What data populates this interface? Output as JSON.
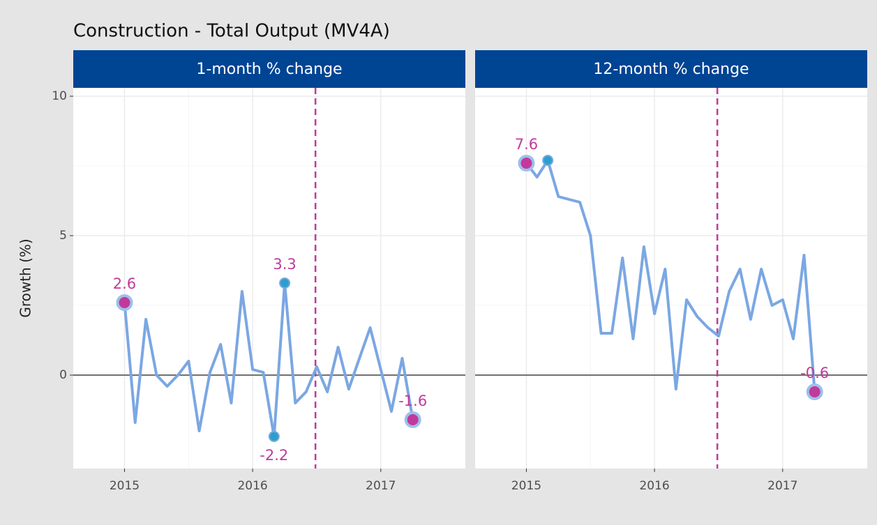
{
  "title": "Construction - Total Output (MV4A)",
  "y_label": "Growth (%)",
  "chart_data": [
    {
      "type": "line",
      "strip": "1-month % change",
      "x": [
        2015,
        2015.083,
        2015.167,
        2015.25,
        2015.333,
        2015.417,
        2015.5,
        2015.583,
        2015.667,
        2015.75,
        2015.833,
        2015.917,
        2016,
        2016.083,
        2016.167,
        2016.25,
        2016.333,
        2016.417,
        2016.5,
        2016.583,
        2016.667,
        2016.75,
        2016.833,
        2016.917,
        2017,
        2017.083,
        2017.167,
        2017.25
      ],
      "values": [
        2.6,
        -1.7,
        2.0,
        0.0,
        -0.4,
        0.0,
        0.5,
        -2.0,
        0.1,
        1.1,
        -1.0,
        3.0,
        0.2,
        0.1,
        -2.2,
        3.3,
        -1.0,
        -0.6,
        0.3,
        -0.6,
        1.0,
        -0.5,
        0.6,
        1.7,
        0.2,
        -1.3,
        0.6,
        -1.6
      ],
      "color": "#7ba7e3",
      "highlight_color": "#c13a9b",
      "extreme_color": "#2b9fcb",
      "xlim": [
        2014.6,
        2017.66
      ],
      "xticks": [
        2015,
        2016,
        2017
      ],
      "ylim": [
        -3.35,
        10.3
      ],
      "yticks": [
        0,
        5,
        10
      ],
      "reference_x": 2016.49,
      "reference_y": 0,
      "grid": true
    },
    {
      "type": "line",
      "strip": "12-month % change",
      "x": [
        2015,
        2015.083,
        2015.167,
        2015.25,
        2015.333,
        2015.417,
        2015.5,
        2015.583,
        2015.667,
        2015.75,
        2015.833,
        2015.917,
        2016,
        2016.083,
        2016.167,
        2016.25,
        2016.333,
        2016.417,
        2016.5,
        2016.583,
        2016.667,
        2016.75,
        2016.833,
        2016.917,
        2017,
        2017.083,
        2017.167,
        2017.25
      ],
      "values": [
        7.6,
        7.1,
        7.7,
        6.4,
        6.3,
        6.2,
        5.0,
        1.5,
        1.5,
        4.2,
        1.3,
        4.6,
        2.2,
        3.8,
        -0.5,
        2.7,
        2.1,
        1.7,
        1.4,
        3.0,
        3.8,
        2.0,
        3.8,
        2.5,
        2.7,
        1.3,
        4.3,
        -0.6
      ],
      "color": "#7ba7e3",
      "highlight_color": "#c13a9b",
      "extreme_color": "#2b9fcb",
      "xlim": [
        2014.6,
        2017.66
      ],
      "xticks": [
        2015,
        2016,
        2017
      ],
      "ylim": [
        -3.35,
        10.3
      ],
      "yticks": [
        0,
        5,
        10
      ],
      "reference_x": 2016.49,
      "reference_y": 0,
      "grid": true
    }
  ]
}
